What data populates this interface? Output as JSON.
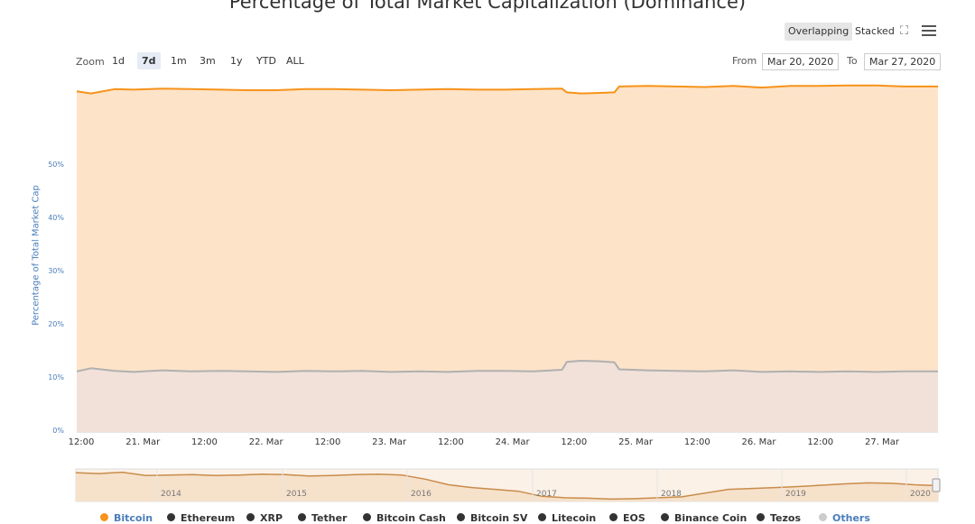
{
  "title": "Percentage of Total Market Capitalization (Dominance)",
  "toggles": [
    "Overlapping",
    "Stacked"
  ],
  "zoom": {
    "label": "Zoom",
    "options": [
      "1d",
      "7d",
      "1m",
      "3m",
      "1y",
      "YTD",
      "ALL"
    ],
    "active": "7d"
  },
  "range": {
    "from_label": "From",
    "from": "Mar 20, 2020",
    "to_label": "To",
    "to": "Mar 27, 2020"
  },
  "icons": {
    "fullscreen": "fullscreen-icon",
    "menu": "hamburger-menu-icon"
  },
  "colors": {
    "bitcoin": "#f7931a",
    "bitcoin_fill": "#fde3c8",
    "others_fill": "#efe0dc",
    "others_line": "#b0b0b0",
    "axis_text": "#4a7ebb"
  },
  "chart_data": {
    "type": "area",
    "ylabel": "Percentage of Total Market Cap",
    "ylim": [
      0,
      66
    ],
    "yticks": [
      "0%",
      "10%",
      "20%",
      "30%",
      "40%",
      "50%"
    ],
    "xticks": [
      "12:00",
      "21. Mar",
      "12:00",
      "22. Mar",
      "12:00",
      "23. Mar",
      "12:00",
      "24. Mar",
      "12:00",
      "25. Mar",
      "12:00",
      "26. Mar",
      "12:00",
      "27. Mar"
    ],
    "x_range": [
      "Mar 20, 2020 06:00",
      "Mar 27, 2020 19:00"
    ],
    "grid": true,
    "series": [
      {
        "name": "Bitcoin",
        "x": [
          0,
          3,
          8,
          12,
          18,
          24,
          30,
          36,
          42,
          48,
          54,
          60,
          66,
          72,
          78,
          84,
          90,
          96,
          102,
          103,
          106,
          110,
          113,
          114,
          120,
          126,
          132,
          138,
          144,
          150,
          156,
          162,
          168,
          174,
          181
        ],
        "values": [
          64.1,
          63.7,
          64.5,
          64.4,
          64.6,
          64.5,
          64.4,
          64.3,
          64.3,
          64.5,
          64.5,
          64.4,
          64.3,
          64.4,
          64.5,
          64.4,
          64.4,
          64.5,
          64.6,
          63.9,
          63.7,
          63.8,
          63.9,
          65.0,
          65.1,
          65.0,
          64.9,
          65.1,
          64.8,
          65.1,
          65.1,
          65.2,
          65.2,
          65.0,
          65.0
        ]
      },
      {
        "name": "Others",
        "x": [
          0,
          3,
          8,
          12,
          18,
          24,
          30,
          36,
          42,
          48,
          54,
          60,
          66,
          72,
          78,
          84,
          90,
          96,
          102,
          103,
          106,
          110,
          113,
          114,
          120,
          126,
          132,
          138,
          144,
          150,
          156,
          162,
          168,
          174,
          181
        ],
        "values": [
          11.4,
          12.0,
          11.5,
          11.3,
          11.6,
          11.4,
          11.5,
          11.4,
          11.3,
          11.5,
          11.4,
          11.5,
          11.3,
          11.4,
          11.3,
          11.5,
          11.5,
          11.4,
          11.7,
          13.2,
          13.4,
          13.3,
          13.1,
          11.8,
          11.6,
          11.5,
          11.4,
          11.6,
          11.3,
          11.4,
          11.3,
          11.4,
          11.3,
          11.4,
          11.4
        ]
      }
    ],
    "navigator": {
      "years": [
        "2014",
        "2015",
        "2016",
        "2017",
        "2018",
        "2019",
        "2020"
      ],
      "values": [
        92,
        90,
        93,
        86,
        87,
        88,
        86,
        87,
        89,
        88,
        85,
        86,
        88,
        89,
        87,
        78,
        66,
        60,
        56,
        52,
        41,
        38,
        37,
        35,
        36,
        38,
        40,
        48,
        56,
        58,
        60,
        62,
        65,
        68,
        70,
        69,
        66,
        64
      ],
      "ylim": [
        30,
        100
      ]
    },
    "legend": [
      "Bitcoin",
      "Ethereum",
      "XRP",
      "Tether",
      "Bitcoin Cash",
      "Bitcoin SV",
      "Litecoin",
      "EOS",
      "Binance Coin",
      "Tezos",
      "Others"
    ],
    "legend_colors": [
      "#f7931a",
      "#333333",
      "#333333",
      "#333333",
      "#333333",
      "#333333",
      "#333333",
      "#333333",
      "#333333",
      "#333333",
      "#cccccc"
    ]
  }
}
